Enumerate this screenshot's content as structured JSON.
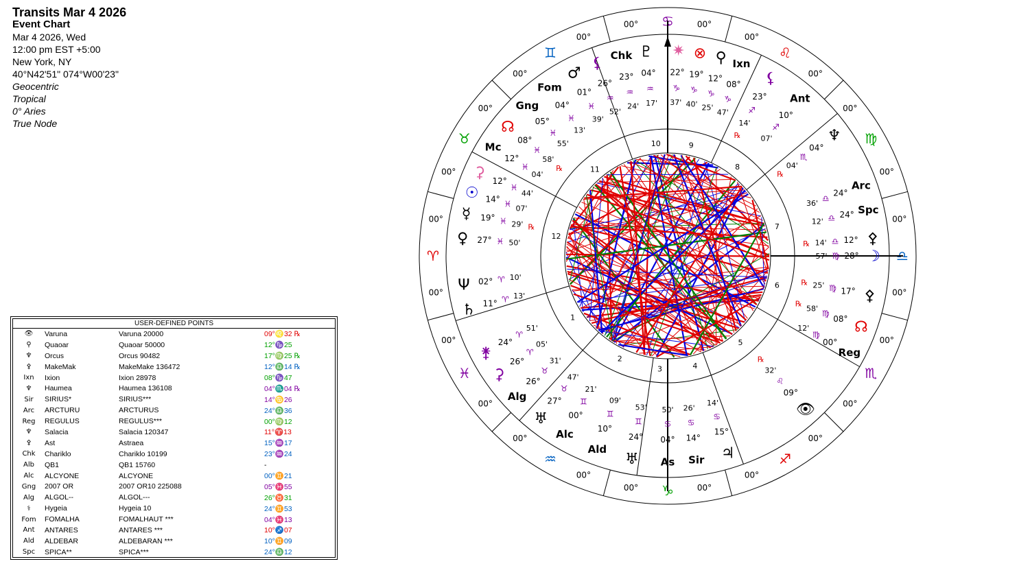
{
  "header": {
    "title": "Transits Mar 4 2026",
    "subtitle": "Event Chart",
    "date": "Mar 4 2026, Wed",
    "time": "12:00 pm  EST +5:00",
    "place": "New York, NY",
    "coords": "40°N42'51\" 074°W00'23\"",
    "options": [
      "Geocentric",
      "Tropical",
      "0° Aries",
      "True Node"
    ]
  },
  "udp": {
    "title": "USER-DEFINED POINTS",
    "rows": [
      {
        "glyph": "👁",
        "abbr": "Varuna",
        "name": "Varuna 20000",
        "pos": "09°♌32 ℞",
        "color": "#e00000"
      },
      {
        "glyph": "⚲",
        "abbr": "Quaoar",
        "name": "Quaoar 50000",
        "pos": "12°♑25",
        "color": "#00a000"
      },
      {
        "glyph": "♆",
        "abbr": "Orcus",
        "name": "Orcus 90482",
        "pos": "17°♍25 ℞",
        "color": "#00a000"
      },
      {
        "glyph": "⚴",
        "abbr": "MakeMak",
        "name": "MakeMake 136472",
        "pos": "12°♎14 ℞",
        "color": "#0060c0"
      },
      {
        "glyph": "Ixn",
        "abbr": "Ixion",
        "name": "Ixion 28978",
        "pos": "08°♑47",
        "color": "#00a000"
      },
      {
        "glyph": "♆",
        "abbr": "Haumea",
        "name": "Haumea 136108",
        "pos": "04°♏04 ℞",
        "color": "#8000a0"
      },
      {
        "glyph": "Sir",
        "abbr": "SIRIUS*",
        "name": "SIRIUS***",
        "pos": "14°♋26",
        "color": "#8000a0"
      },
      {
        "glyph": "Arc",
        "abbr": "ARCTURU",
        "name": "ARCTURUS",
        "pos": "24°♎36",
        "color": "#0060c0"
      },
      {
        "glyph": "Reg",
        "abbr": "REGULUS",
        "name": "REGULUS***",
        "pos": "00°♍12",
        "color": "#00a000"
      },
      {
        "glyph": "♆",
        "abbr": "Salacia",
        "name": "Salacia 120347",
        "pos": "11°♈13",
        "color": "#e00000"
      },
      {
        "glyph": "⚴",
        "abbr": "Ast",
        "name": "Astraea",
        "pos": "15°♒17",
        "color": "#0060c0"
      },
      {
        "glyph": "Chk",
        "abbr": "Chariklo",
        "name": "Chariklo 10199",
        "pos": "23°♒24",
        "color": "#0060c0"
      },
      {
        "glyph": "Alb",
        "abbr": "QB1",
        "name": "QB1 15760",
        "pos": "-",
        "color": "#000000"
      },
      {
        "glyph": "Alc",
        "abbr": "ALCYONE",
        "name": "ALCYONE",
        "pos": "00°♊21",
        "color": "#0060c0"
      },
      {
        "glyph": "Gng",
        "abbr": "2007 OR",
        "name": "2007 OR10 225088",
        "pos": "05°♓55",
        "color": "#8000a0"
      },
      {
        "glyph": "Alg",
        "abbr": "ALGOL--",
        "name": "ALGOL---",
        "pos": "26°♉31",
        "color": "#00a000"
      },
      {
        "glyph": "⚕",
        "abbr": "Hygeia",
        "name": "Hygeia 10",
        "pos": "24°♊53",
        "color": "#0060c0"
      },
      {
        "glyph": "Fom",
        "abbr": "FOMALHA",
        "name": "FOMALHAUT ***",
        "pos": "04°♓13",
        "color": "#8000a0"
      },
      {
        "glyph": "Ant",
        "abbr": "ANTARES",
        "name": "ANTARES ***",
        "pos": "10°♐07",
        "color": "#e00000"
      },
      {
        "glyph": "Ald",
        "abbr": "ALDEBAR",
        "name": "ALDEBARAN ***",
        "pos": "10°♊09",
        "color": "#0060c0"
      },
      {
        "glyph": "Spc",
        "abbr": "SPICA**",
        "name": "SPICA***",
        "pos": "24°♎12",
        "color": "#0060c0"
      }
    ]
  },
  "wheel": {
    "signs": [
      {
        "glyph": "♈",
        "color": "#e00000",
        "lon": 0
      },
      {
        "glyph": "♉",
        "color": "#00a000",
        "lon": 30
      },
      {
        "glyph": "♊",
        "color": "#0060c0",
        "lon": 60
      },
      {
        "glyph": "♋",
        "color": "#8000a0",
        "lon": 90
      },
      {
        "glyph": "♌",
        "color": "#e00000",
        "lon": 120
      },
      {
        "glyph": "♍",
        "color": "#00a000",
        "lon": 150
      },
      {
        "glyph": "♎",
        "color": "#0060c0",
        "lon": 180
      },
      {
        "glyph": "♏",
        "color": "#8000a0",
        "lon": 210
      },
      {
        "glyph": "♐",
        "color": "#e00000",
        "lon": 240
      },
      {
        "glyph": "♑",
        "color": "#00a000",
        "lon": 270
      },
      {
        "glyph": "♒",
        "color": "#0060c0",
        "lon": 300
      },
      {
        "glyph": "♓",
        "color": "#8000a0",
        "lon": 330
      }
    ],
    "cusp_label": "00°",
    "house_numbers": [
      "1",
      "2",
      "3",
      "4",
      "5",
      "6",
      "7",
      "8",
      "9",
      "10",
      "11",
      "12"
    ],
    "planets": [
      {
        "glyph": "☽",
        "name": "Moon",
        "deg": "28°",
        "min": "57'",
        "sign": "♍",
        "color": "#0000cc",
        "retro": false,
        "angle": 0
      },
      {
        "glyph": "⚴",
        "name": "Orcus",
        "deg": "17°",
        "min": "25'",
        "sign": "♍",
        "color": "#000",
        "retro": true,
        "angle": -11
      },
      {
        "glyph": "☊",
        "name": "SNode",
        "deg": "08°",
        "min": "58'",
        "sign": "♍",
        "color": "#e00000",
        "retro": true,
        "angle": -20
      },
      {
        "glyph": "Reg",
        "name": "Regulus",
        "deg": "00°",
        "min": "12'",
        "sign": "♍",
        "color": "#000",
        "retro": false,
        "angle": -28
      },
      {
        "glyph": "👁",
        "name": "Varuna",
        "deg": "09°",
        "min": "32'",
        "sign": "♌",
        "color": "#000",
        "retro": true,
        "angle": -48
      },
      {
        "glyph": "♃",
        "name": "Jupiter",
        "deg": "15°",
        "min": "14'",
        "sign": "♋",
        "color": "#000",
        "retro": false,
        "angle": -73
      },
      {
        "glyph": "Sir",
        "name": "Sirius",
        "deg": "14°",
        "min": "26'",
        "sign": "♋",
        "color": "#000",
        "retro": false,
        "angle": -82
      },
      {
        "glyph": "As",
        "name": "Ascendant",
        "deg": "04°",
        "min": "50'",
        "sign": "♋",
        "color": "#000",
        "retro": false,
        "angle": -90
      },
      {
        "glyph": "♅",
        "name": "Uranus",
        "deg": "24°",
        "min": "53'",
        "sign": "♊",
        "color": "#000",
        "retro": false,
        "angle": -100
      },
      {
        "glyph": "Ald",
        "name": "Aldebaran",
        "deg": "10°",
        "min": "09'",
        "sign": "♊",
        "color": "#000",
        "retro": false,
        "angle": -110
      },
      {
        "glyph": "Alc",
        "name": "Alcyone",
        "deg": "00°",
        "min": "21'",
        "sign": "♊",
        "color": "#000",
        "retro": false,
        "angle": -120
      },
      {
        "glyph": "♅",
        "name": "Pholus",
        "deg": "27°",
        "min": "47'",
        "sign": "♉",
        "color": "#000",
        "retro": false,
        "angle": -128
      },
      {
        "glyph": "Alg",
        "name": "Algol",
        "deg": "26°",
        "min": "31'",
        "sign": "♉",
        "color": "#000",
        "retro": false,
        "angle": -137
      },
      {
        "glyph": "⚳",
        "name": "Ceres",
        "deg": "26°",
        "min": "05'",
        "sign": "♈",
        "color": "#8000a0",
        "retro": false,
        "angle": -145
      },
      {
        "glyph": "⚵",
        "name": "Juno",
        "deg": "24°",
        "min": "51'",
        "sign": "♈",
        "color": "#8000a0",
        "retro": false,
        "angle": -152
      },
      {
        "glyph": "♄",
        "name": "Saturn",
        "deg": "11°",
        "min": "13'",
        "sign": "♈",
        "color": "#000",
        "retro": false,
        "angle": -165
      },
      {
        "glyph": "Ψ",
        "name": "Neptune",
        "deg": "02°",
        "min": "10'",
        "sign": "♈",
        "color": "#000",
        "retro": false,
        "angle": -172
      },
      {
        "glyph": "♀",
        "name": "Venus",
        "deg": "27°",
        "min": "50'",
        "sign": "♓",
        "color": "#000",
        "retro": false,
        "angle": -185
      },
      {
        "glyph": "☿",
        "name": "Mercury",
        "deg": "19°",
        "min": "29'",
        "sign": "♓",
        "color": "#000",
        "retro": true,
        "angle": -192
      },
      {
        "glyph": "☉",
        "name": "Sun",
        "deg": "14°",
        "min": "07'",
        "sign": "♓",
        "color": "#0000cc",
        "retro": false,
        "angle": -198
      },
      {
        "glyph": "⚳",
        "name": "Pallas",
        "deg": "12°",
        "min": "44'",
        "sign": "♓",
        "color": "#e060a0",
        "retro": false,
        "angle": -204
      },
      {
        "glyph": "Mc",
        "name": "Midheaven",
        "deg": "12°",
        "min": "04'",
        "sign": "♓",
        "color": "#000",
        "retro": false,
        "angle": -212
      },
      {
        "glyph": "☊",
        "name": "NNode",
        "deg": "08°",
        "min": "58'",
        "sign": "♓",
        "color": "#e00000",
        "retro": true,
        "angle": -219
      },
      {
        "glyph": "Gng",
        "name": "Gonggong",
        "deg": "05°",
        "min": "55'",
        "sign": "♓",
        "color": "#000",
        "retro": false,
        "angle": -227
      },
      {
        "glyph": "Fom",
        "name": "Fomalhaut",
        "deg": "04°",
        "min": "13'",
        "sign": "♓",
        "color": "#000",
        "retro": false,
        "angle": -235
      },
      {
        "glyph": "♂",
        "name": "Mars",
        "deg": "01°",
        "min": "39'",
        "sign": "♓",
        "color": "#000",
        "retro": false,
        "angle": -243
      },
      {
        "glyph": "⚸",
        "name": "Lilith",
        "deg": "26°",
        "min": "52'",
        "sign": "♒",
        "color": "#8000a0",
        "retro": false,
        "angle": -250
      },
      {
        "glyph": "Chk",
        "name": "Chariklo",
        "deg": "23°",
        "min": "24'",
        "sign": "♒",
        "color": "#000",
        "retro": false,
        "angle": -257
      },
      {
        "glyph": "♇",
        "name": "Pluto",
        "deg": "04°",
        "min": "17'",
        "sign": "♒",
        "color": "#000",
        "retro": false,
        "angle": -264
      },
      {
        "glyph": "✷",
        "name": "Vesta",
        "deg": "22°",
        "min": "37'",
        "sign": "♑",
        "color": "#e060a0",
        "retro": false,
        "angle": -273
      },
      {
        "glyph": "⊗",
        "name": "PartFortune",
        "deg": "19°",
        "min": "40'",
        "sign": "♑",
        "color": "#e00000",
        "retro": false,
        "angle": -279
      },
      {
        "glyph": "⚲",
        "name": "Quaoar",
        "deg": "12°",
        "min": "25'",
        "sign": "♑",
        "color": "#000",
        "retro": false,
        "angle": -285
      },
      {
        "glyph": "Ixn",
        "name": "Ixion",
        "deg": "08°",
        "min": "47'",
        "sign": "♑",
        "color": "#000",
        "retro": false,
        "angle": -291
      },
      {
        "glyph": "⚸",
        "name": "BlackMoon",
        "deg": "23°",
        "min": "14'",
        "sign": "♐",
        "color": "#8000a0",
        "retro": true,
        "angle": -300
      },
      {
        "glyph": "Ant",
        "name": "Antares",
        "deg": "10°",
        "min": "07'",
        "sign": "♐",
        "color": "#000",
        "retro": false,
        "angle": -310
      },
      {
        "glyph": "Arc",
        "name": "Arcturus",
        "deg": "24°",
        "min": "36'",
        "sign": "♎",
        "color": "#000",
        "retro": false,
        "angle": -340
      },
      {
        "glyph": "Spc",
        "name": "Spica",
        "deg": "24°",
        "min": "12'",
        "sign": "♎",
        "color": "#000",
        "retro": false,
        "angle": -347
      },
      {
        "glyph": "⚴",
        "name": "Makemake",
        "deg": "12°",
        "min": "14'",
        "sign": "♎",
        "color": "#000",
        "retro": true,
        "angle": -355
      },
      {
        "glyph": "♆",
        "name": "Haumea",
        "deg": "04°",
        "min": "04'",
        "sign": "♏",
        "color": "#000",
        "retro": true,
        "angle": -324
      }
    ]
  }
}
